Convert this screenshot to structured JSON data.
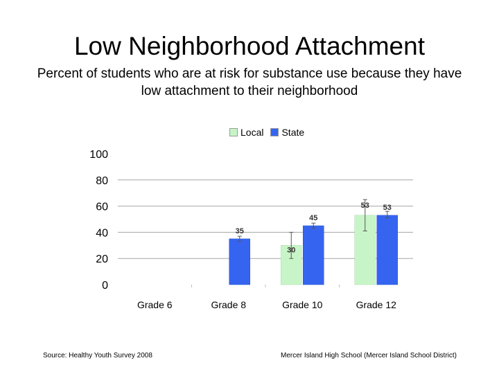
{
  "slide": {
    "title": "Low Neighborhood Attachment",
    "subtitle": "Percent of students who are at risk for substance use because they have low attachment to their neighborhood",
    "source": "Source: Healthy Youth Survey 2008",
    "school": "Mercer Island High School (Mercer Island School District)"
  },
  "chart_data": {
    "type": "bar",
    "categories": [
      "Grade 6",
      "Grade 8",
      "Grade 10",
      "Grade 12"
    ],
    "series": [
      {
        "name": "Local",
        "color": "#c8f5c8",
        "values": [
          null,
          null,
          30,
          53
        ],
        "labels": [
          "",
          "",
          "30",
          "53"
        ],
        "error_low": [
          null,
          null,
          20,
          41
        ],
        "error_high": [
          null,
          null,
          40,
          65
        ]
      },
      {
        "name": "State",
        "color": "#3565f0",
        "values": [
          null,
          35,
          45,
          53
        ],
        "labels": [
          "",
          "35",
          "45",
          "53"
        ],
        "error_low": [
          null,
          33,
          43,
          51
        ],
        "error_high": [
          null,
          37,
          47,
          56
        ]
      }
    ],
    "ylim": [
      0,
      100
    ],
    "yticks": [
      0,
      20,
      40,
      60,
      80,
      100
    ],
    "grid": true,
    "legend": "top",
    "xlabel": "",
    "ylabel": ""
  }
}
